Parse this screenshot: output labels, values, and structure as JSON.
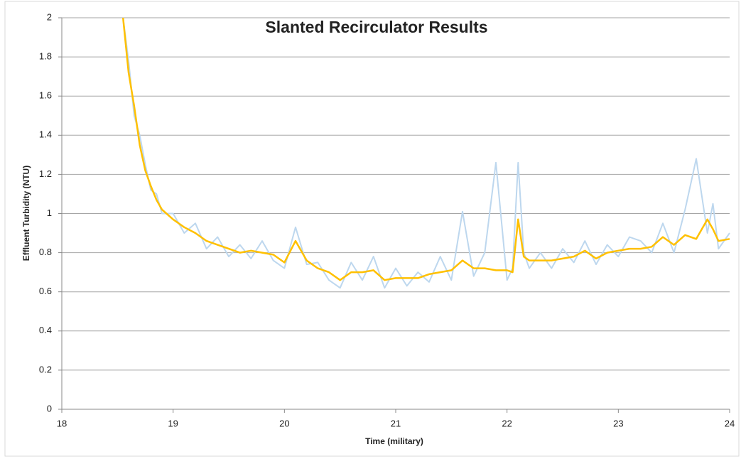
{
  "chart_data": {
    "type": "line",
    "title": "Slanted Recirculator Results",
    "x_label": "Time (military)",
    "y_label": "Effluent Turbidity (NTU)",
    "x": [
      18.55,
      18.6,
      18.65,
      18.7,
      18.75,
      18.8,
      18.85,
      18.9,
      19.0,
      19.1,
      19.2,
      19.3,
      19.4,
      19.5,
      19.6,
      19.7,
      19.8,
      19.9,
      20.0,
      20.1,
      20.2,
      20.3,
      20.4,
      20.5,
      20.6,
      20.7,
      20.8,
      20.9,
      21.0,
      21.1,
      21.2,
      21.3,
      21.4,
      21.5,
      21.6,
      21.7,
      21.8,
      21.9,
      22.0,
      22.05,
      22.1,
      22.15,
      22.2,
      22.3,
      22.4,
      22.5,
      22.6,
      22.7,
      22.8,
      22.9,
      23.0,
      23.1,
      23.2,
      23.3,
      23.4,
      23.5,
      23.6,
      23.7,
      23.8,
      23.85,
      23.9,
      24.0
    ],
    "series": [
      {
        "color": "#bdd7ee",
        "values": [
          2.0,
          1.78,
          1.5,
          1.4,
          1.25,
          1.12,
          1.1,
          1.0,
          1.0,
          0.9,
          0.95,
          0.82,
          0.88,
          0.78,
          0.84,
          0.77,
          0.86,
          0.76,
          0.72,
          0.93,
          0.74,
          0.75,
          0.66,
          0.62,
          0.75,
          0.66,
          0.78,
          0.62,
          0.72,
          0.63,
          0.7,
          0.65,
          0.78,
          0.66,
          1.01,
          0.68,
          0.8,
          1.26,
          0.66,
          0.72,
          1.26,
          0.8,
          0.72,
          0.8,
          0.72,
          0.82,
          0.75,
          0.86,
          0.74,
          0.84,
          0.78,
          0.88,
          0.86,
          0.8,
          0.95,
          0.8,
          1.02,
          1.28,
          0.9,
          1.05,
          0.82,
          0.9
        ]
      },
      {
        "color": "#ffc000",
        "values": [
          2.0,
          1.72,
          1.55,
          1.35,
          1.22,
          1.14,
          1.07,
          1.02,
          0.97,
          0.93,
          0.9,
          0.86,
          0.84,
          0.82,
          0.8,
          0.81,
          0.8,
          0.79,
          0.75,
          0.86,
          0.76,
          0.72,
          0.7,
          0.66,
          0.7,
          0.7,
          0.71,
          0.66,
          0.67,
          0.67,
          0.67,
          0.69,
          0.7,
          0.71,
          0.76,
          0.72,
          0.72,
          0.71,
          0.71,
          0.7,
          0.97,
          0.78,
          0.76,
          0.76,
          0.76,
          0.77,
          0.78,
          0.81,
          0.77,
          0.8,
          0.81,
          0.82,
          0.82,
          0.83,
          0.88,
          0.84,
          0.89,
          0.87,
          0.97,
          0.92,
          0.86,
          0.87
        ]
      }
    ],
    "xlim": [
      18,
      24
    ],
    "xticks": [
      18,
      19,
      20,
      21,
      22,
      23,
      24
    ],
    "ylim": [
      0,
      2
    ],
    "yticks": [
      0,
      0.2,
      0.4,
      0.6,
      0.8,
      1,
      1.2,
      1.4,
      1.6,
      1.8,
      2
    ],
    "grid": true
  }
}
